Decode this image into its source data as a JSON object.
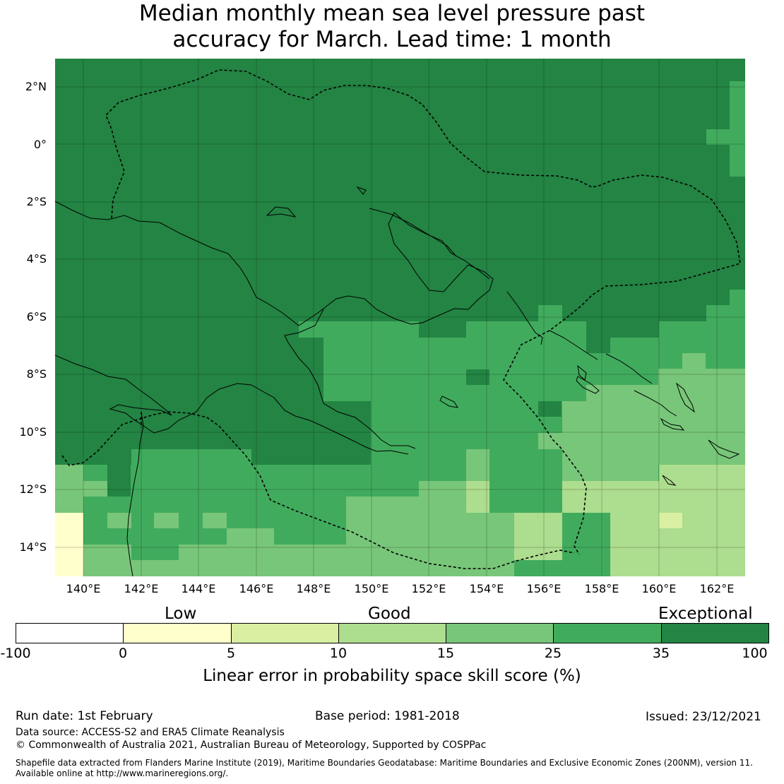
{
  "title": {
    "line1": "Median monthly mean sea level pressure past",
    "line2": "accuracy for March. Lead time: 1 month"
  },
  "map": {
    "latitude_labels": [
      "2°N",
      "0°",
      "2°S",
      "4°S",
      "6°S",
      "8°S",
      "10°S",
      "12°S",
      "14°S"
    ],
    "longitude_labels": [
      "140°E",
      "142°E",
      "144°E",
      "146°E",
      "148°E",
      "150°E",
      "152°E",
      "154°E",
      "156°E",
      "158°E",
      "160°E",
      "162°E"
    ],
    "lon_range": [
      139,
      163
    ],
    "lat_range": [
      -15,
      3
    ],
    "background_category": 35
  },
  "colorbar": {
    "categories": [
      "Low",
      "Good",
      "Exceptional"
    ],
    "ticks": [
      "-100",
      "0",
      "5",
      "10",
      "15",
      "25",
      "35",
      "100"
    ],
    "colors": [
      "#ffffff",
      "#ffffcc",
      "#d9f0a3",
      "#addd8e",
      "#78c679",
      "#41ab5d",
      "#238443"
    ],
    "label": "Linear error in probability space skill score (%)"
  },
  "footer": {
    "run_date": "Run date: 1st February",
    "base_period": "Base period: 1981-2018",
    "issued": "Issued: 23/12/2021",
    "data_source": "Data source: ACCESS-S2 and ERA5 Climate Reanalysis",
    "copyright": "© Commonwealth of Australia 2021, Australian Bureau of Meteorology, Supported by COSPPac",
    "shapefile_line1": "Shapefile data extracted from Flanders Marine Institute (2019), Maritime Boundaries Geodatabase: Maritime Boundaries and Exclusive Economic Zones (200NM), version 11.",
    "shapefile_line2": "Available online at http://www.marineregions.org/."
  }
}
